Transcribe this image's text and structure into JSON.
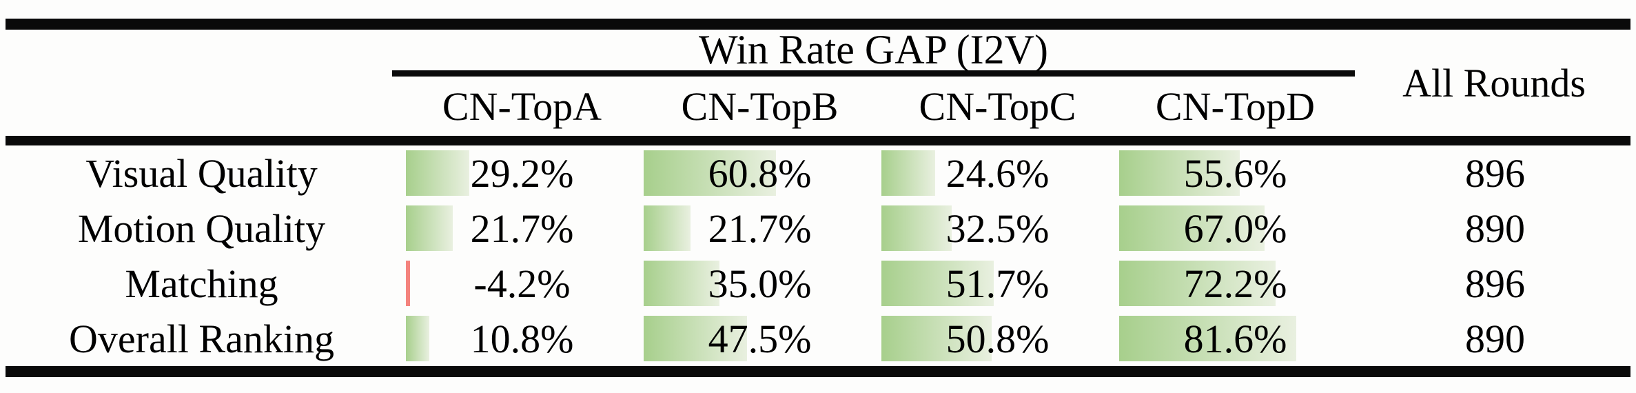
{
  "table": {
    "group_header": "Win Rate GAP (I2V)",
    "all_rounds_header": "All Rounds",
    "columns": [
      "CN-TopA",
      "CN-TopB",
      "CN-TopC",
      "CN-TopD"
    ],
    "rows": [
      {
        "label": "Visual Quality",
        "values": [
          29.2,
          60.8,
          24.6,
          55.6
        ],
        "display": [
          "29.2%",
          "60.8%",
          "24.6%",
          "55.6%"
        ],
        "all_rounds": "896"
      },
      {
        "label": "Motion Quality",
        "values": [
          21.7,
          21.7,
          32.5,
          67.0
        ],
        "display": [
          "21.7%",
          "21.7%",
          "32.5%",
          "67.0%"
        ],
        "all_rounds": "890"
      },
      {
        "label": "Matching",
        "values": [
          -4.2,
          35.0,
          51.7,
          72.2
        ],
        "display": [
          "-4.2%",
          "35.0%",
          "51.7%",
          "72.2%"
        ],
        "all_rounds": "896"
      },
      {
        "label": "Overall Ranking",
        "values": [
          10.8,
          47.5,
          50.8,
          81.6
        ],
        "display": [
          "10.8%",
          "47.5%",
          "50.8%",
          "81.6%"
        ],
        "all_rounds": "890"
      }
    ]
  },
  "colors": {
    "bar_gradient_start": "#a7cf8c",
    "bar_gradient_end": "#e9f0e0",
    "bar_negative": "#f4837d",
    "rule": "#0a0a0a"
  },
  "chart_data": {
    "type": "table",
    "title": "Win Rate GAP (I2V)",
    "row_labels": [
      "Visual Quality",
      "Motion Quality",
      "Matching",
      "Overall Ranking"
    ],
    "columns": [
      "CN-TopA",
      "CN-TopB",
      "CN-TopC",
      "CN-TopD",
      "All Rounds"
    ],
    "values": [
      [
        29.2,
        60.8,
        24.6,
        55.6,
        896
      ],
      [
        21.7,
        21.7,
        32.5,
        67.0,
        890
      ],
      [
        -4.2,
        35.0,
        51.7,
        72.2,
        896
      ],
      [
        10.8,
        47.5,
        50.8,
        81.6,
        890
      ]
    ],
    "value_units": [
      "%",
      "%",
      "%",
      "%",
      "count"
    ],
    "bar_axis_range": [
      0,
      100
    ],
    "notes": "Green in-cell data bars proportional to percentage; negative value shown as thin red bar"
  }
}
